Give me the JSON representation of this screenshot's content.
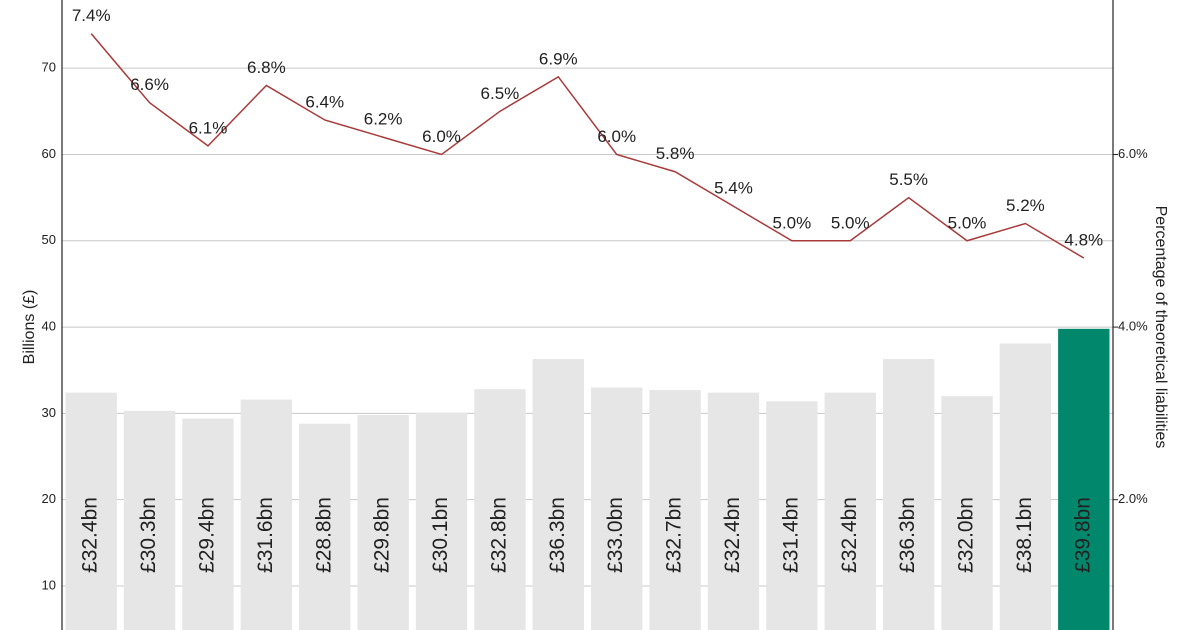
{
  "chart_data": {
    "type": "combo",
    "y_label": "Billions (£)",
    "y2_label": "Percentage of theoretical liabilities",
    "ylim": [
      4.9,
      77.9
    ],
    "yticks": [
      10,
      20,
      30,
      40,
      50,
      60,
      70
    ],
    "y2lim": [
      0.49,
      7.79
    ],
    "y2ticks": [
      {
        "value": 2,
        "label": "2.0%"
      },
      {
        "value": 4,
        "label": "4.0%"
      },
      {
        "value": 6,
        "label": "6.0%"
      }
    ],
    "grid": true,
    "series": [
      {
        "type": "bar",
        "values": [
          32.4,
          30.3,
          29.4,
          31.6,
          28.8,
          29.8,
          30.1,
          32.8,
          36.3,
          33.0,
          32.7,
          32.4,
          31.4,
          32.4,
          36.3,
          32.0,
          38.1,
          39.8
        ],
        "value_labels": [
          "£32.4bn",
          "£30.3bn",
          "£29.4bn",
          "£31.6bn",
          "£28.8bn",
          "£29.8bn",
          "£30.1bn",
          "£32.8bn",
          "£36.3bn",
          "£33.0bn",
          "£32.7bn",
          "£32.4bn",
          "£31.4bn",
          "£32.4bn",
          "£36.3bn",
          "£32.0bn",
          "£38.1bn",
          "£39.8bn"
        ],
        "colors": [
          "#e6e6e6",
          "#e6e6e6",
          "#e6e6e6",
          "#e6e6e6",
          "#e6e6e6",
          "#e6e6e6",
          "#e6e6e6",
          "#e6e6e6",
          "#e6e6e6",
          "#e6e6e6",
          "#e6e6e6",
          "#e6e6e6",
          "#e6e6e6",
          "#e6e6e6",
          "#e6e6e6",
          "#e6e6e6",
          "#e6e6e6",
          "#00876c"
        ]
      },
      {
        "type": "line",
        "axis": "y2",
        "color": "#a83a3a",
        "values": [
          7.4,
          6.6,
          6.1,
          6.8,
          6.4,
          6.2,
          6.0,
          6.5,
          6.9,
          6.0,
          5.8,
          5.4,
          5.0,
          5.0,
          5.5,
          5.0,
          5.2,
          4.8
        ],
        "value_labels": [
          "7.4%",
          "6.6%",
          "6.1%",
          "6.8%",
          "6.4%",
          "6.2%",
          "6.0%",
          "6.5%",
          "6.9%",
          "6.0%",
          "5.8%",
          "5.4%",
          "5.0%",
          "5.0%",
          "5.5%",
          "5.0%",
          "5.2%",
          "4.8%"
        ]
      }
    ]
  }
}
